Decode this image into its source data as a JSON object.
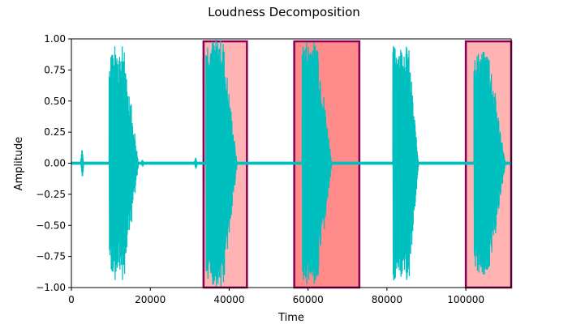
{
  "chart_data": {
    "type": "line",
    "title": "Loudness Decomposition",
    "xlabel": "Time",
    "ylabel": "Amplitude",
    "xlim": [
      0,
      111500
    ],
    "ylim": [
      -1.0,
      1.0
    ],
    "xticks": [
      0,
      20000,
      40000,
      60000,
      80000,
      100000
    ],
    "xtick_labels": [
      "0",
      "20000",
      "40000",
      "60000",
      "80000",
      "100000"
    ],
    "yticks": [
      1.0,
      0.75,
      0.5,
      0.25,
      0.0,
      -0.25,
      -0.5,
      -0.75,
      -1.0
    ],
    "ytick_labels": [
      "1.00",
      "0.75",
      "0.50",
      "0.25",
      "0.00",
      "−0.25",
      "−0.50",
      "−0.75",
      "−1.00"
    ],
    "grid": false,
    "legend": "none",
    "series": [
      {
        "color": "#00bfbf",
        "bursts": [
          {
            "start": 9500,
            "peak_end": 13500,
            "end": 17000,
            "max": 0.8,
            "min": -0.95
          },
          {
            "start": 34000,
            "peak_end": 38500,
            "end": 42000,
            "max": 1.0,
            "min": -1.0
          },
          {
            "start": 58500,
            "peak_end": 62500,
            "end": 66000,
            "max": 0.98,
            "min": -1.0
          },
          {
            "start": 81500,
            "peak_end": 85500,
            "end": 88000,
            "max": 0.95,
            "min": -0.95
          },
          {
            "start": 102000,
            "peak_end": 106000,
            "end": 110000,
            "max": 0.9,
            "min": -0.9
          }
        ],
        "small_blips": [
          {
            "x": 2700,
            "amp": 0.12
          },
          {
            "x": 18000,
            "amp": 0.03
          },
          {
            "x": 31500,
            "amp": 0.05
          }
        ]
      }
    ],
    "highlight_regions": [
      {
        "x0": 33500,
        "x1": 44500,
        "y0": -1.0,
        "y1": 0.98,
        "fill": "#ffb3b3",
        "edge": "#8b0057"
      },
      {
        "x0": 56500,
        "x1": 73000,
        "y0": -1.0,
        "y1": 0.98,
        "fill": "#ff8a8a",
        "edge": "#8b0057"
      },
      {
        "x0": 100000,
        "x1": 111500,
        "y0": -1.0,
        "y1": 0.98,
        "fill": "#ffb3b3",
        "edge": "#8b0057"
      }
    ]
  }
}
